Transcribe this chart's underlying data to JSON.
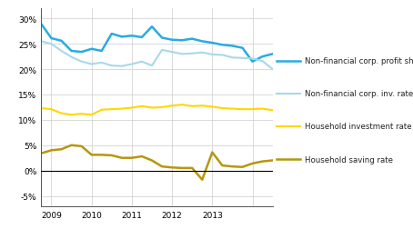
{
  "xlim": [
    0,
    23
  ],
  "ylim": [
    -0.07,
    0.32
  ],
  "yticks": [
    -0.05,
    0.0,
    0.05,
    0.1,
    0.15,
    0.2,
    0.25,
    0.3
  ],
  "ytick_labels": [
    "-5%",
    "0%",
    "5%",
    "10%",
    "15%",
    "20%",
    "25%",
    "30%"
  ],
  "xtick_positions": [
    1,
    5,
    9,
    13,
    17,
    21
  ],
  "xtick_labels": [
    "2009",
    "2010",
    "2011",
    "2012",
    "2013",
    ""
  ],
  "legend_labels": [
    "Non-financial corp. profit share",
    "Non-financial corp. inv. rate",
    "Household investment rate",
    "Household saving rate"
  ],
  "series": {
    "nfc_profit": [
      0.289,
      0.261,
      0.256,
      0.236,
      0.234,
      0.24,
      0.236,
      0.27,
      0.264,
      0.266,
      0.263,
      0.284,
      0.262,
      0.258,
      0.257,
      0.26,
      0.255,
      0.252,
      0.248,
      0.246,
      0.242,
      0.215,
      0.225,
      0.23
    ],
    "nfc_inv": [
      0.255,
      0.25,
      0.236,
      0.224,
      0.215,
      0.21,
      0.213,
      0.207,
      0.206,
      0.21,
      0.215,
      0.207,
      0.238,
      0.234,
      0.23,
      0.231,
      0.233,
      0.229,
      0.228,
      0.223,
      0.222,
      0.221,
      0.216,
      0.2
    ],
    "hh_inv": [
      0.123,
      0.121,
      0.113,
      0.11,
      0.112,
      0.11,
      0.12,
      0.121,
      0.122,
      0.124,
      0.127,
      0.124,
      0.125,
      0.128,
      0.13,
      0.127,
      0.128,
      0.126,
      0.123,
      0.122,
      0.121,
      0.121,
      0.122,
      0.119
    ],
    "hh_saving": [
      0.034,
      0.04,
      0.042,
      0.05,
      0.048,
      0.031,
      0.031,
      0.03,
      0.025,
      0.025,
      0.028,
      0.02,
      0.008,
      0.006,
      0.005,
      0.005,
      -0.018,
      0.036,
      0.01,
      0.008,
      0.007,
      0.014,
      0.018,
      0.02
    ]
  },
  "bg_color": "#FFFFFF",
  "grid_color": "#CCCCCC",
  "line_colors": {
    "nfc_profit": "#29ABE2",
    "nfc_inv": "#A8D8EA",
    "hh_inv": "#FFD700",
    "hh_saving": "#B8960C"
  },
  "line_widths": {
    "nfc_profit": 1.8,
    "nfc_inv": 1.5,
    "hh_inv": 1.5,
    "hh_saving": 1.8
  }
}
